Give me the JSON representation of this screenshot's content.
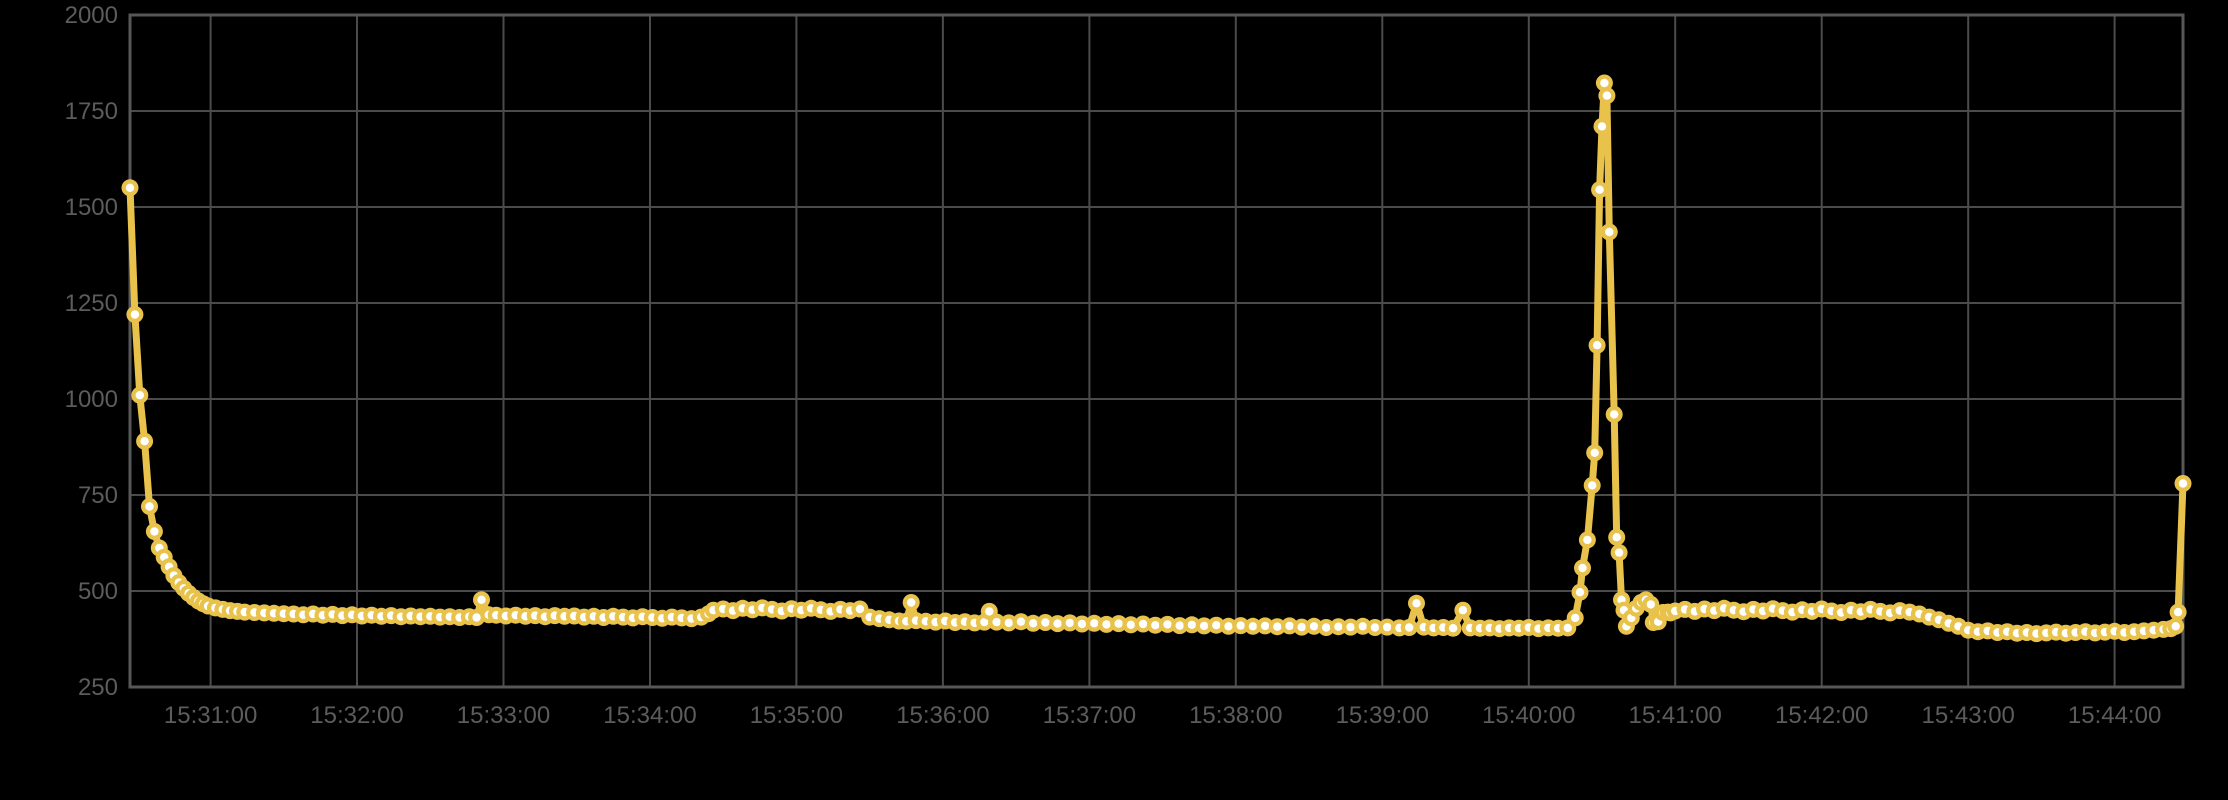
{
  "chart_data": {
    "type": "line",
    "title": "",
    "subtitle": "",
    "legend": "none",
    "grid": true,
    "series_name": "metric",
    "x_axis": {
      "kind": "time",
      "time_base": "15:30:00",
      "visible_range_seconds": [
        27,
        868
      ],
      "tick_offsets_seconds": [
        60,
        120,
        180,
        240,
        300,
        360,
        420,
        480,
        540,
        600,
        660,
        720,
        780,
        840
      ],
      "tick_labels": [
        "15:31:00",
        "15:32:00",
        "15:33:00",
        "15:34:00",
        "15:35:00",
        "15:36:00",
        "15:37:00",
        "15:38:00",
        "15:39:00",
        "15:40:00",
        "15:41:00",
        "15:42:00",
        "15:43:00",
        "15:44:00"
      ]
    },
    "y_axis": {
      "range": [
        250,
        2000
      ],
      "tick_values": [
        250,
        500,
        750,
        1000,
        1250,
        1500,
        1750,
        2000
      ],
      "tick_labels": [
        "250",
        "500",
        "750",
        "1000",
        "1250",
        "1500",
        "1750",
        "2000"
      ]
    },
    "colors": {
      "background": "#000000",
      "line": "#e8c24a",
      "marker_ring": "#e8c24a",
      "marker_core": "#ffffff",
      "gridline": "#4b4b4b",
      "axis_border": "#575757",
      "tick_text": "#5c5c5c"
    },
    "points": [
      [
        27,
        1550
      ],
      [
        29,
        1220
      ],
      [
        31,
        1010
      ],
      [
        33,
        890
      ],
      [
        35,
        720
      ],
      [
        37,
        655
      ],
      [
        39,
        612
      ],
      [
        41,
        588
      ],
      [
        43,
        563
      ],
      [
        45,
        540
      ],
      [
        47,
        522
      ],
      [
        49,
        507
      ],
      [
        51,
        494
      ],
      [
        53,
        483
      ],
      [
        55,
        474
      ],
      [
        57,
        467
      ],
      [
        59,
        461
      ],
      [
        62,
        456
      ],
      [
        65,
        452
      ],
      [
        68,
        449
      ],
      [
        71,
        447
      ],
      [
        74,
        445
      ],
      [
        78,
        444
      ],
      [
        82,
        443
      ],
      [
        86,
        442
      ],
      [
        90,
        441
      ],
      [
        94,
        440
      ],
      [
        98,
        438
      ],
      [
        102,
        440
      ],
      [
        106,
        437
      ],
      [
        110,
        439
      ],
      [
        114,
        436
      ],
      [
        118,
        438
      ],
      [
        122,
        435
      ],
      [
        126,
        437
      ],
      [
        130,
        434
      ],
      [
        134,
        436
      ],
      [
        138,
        433
      ],
      [
        142,
        435
      ],
      [
        146,
        433
      ],
      [
        150,
        434
      ],
      [
        154,
        432
      ],
      [
        158,
        433
      ],
      [
        162,
        431
      ],
      [
        166,
        433
      ],
      [
        169,
        431
      ],
      [
        171,
        477
      ],
      [
        174,
        438
      ],
      [
        177,
        437
      ],
      [
        181,
        435
      ],
      [
        185,
        437
      ],
      [
        189,
        434
      ],
      [
        193,
        436
      ],
      [
        197,
        433
      ],
      [
        201,
        436
      ],
      [
        205,
        434
      ],
      [
        209,
        435
      ],
      [
        213,
        432
      ],
      [
        217,
        434
      ],
      [
        221,
        431
      ],
      [
        225,
        434
      ],
      [
        229,
        432
      ],
      [
        233,
        430
      ],
      [
        237,
        433
      ],
      [
        241,
        431
      ],
      [
        245,
        429
      ],
      [
        249,
        432
      ],
      [
        253,
        430
      ],
      [
        257,
        428
      ],
      [
        261,
        432
      ],
      [
        264,
        441
      ],
      [
        266,
        450
      ],
      [
        270,
        453
      ],
      [
        274,
        449
      ],
      [
        278,
        455
      ],
      [
        282,
        451
      ],
      [
        286,
        456
      ],
      [
        290,
        452
      ],
      [
        294,
        448
      ],
      [
        298,
        454
      ],
      [
        302,
        450
      ],
      [
        306,
        455
      ],
      [
        310,
        451
      ],
      [
        314,
        447
      ],
      [
        318,
        452
      ],
      [
        322,
        449
      ],
      [
        326,
        453
      ],
      [
        330,
        432
      ],
      [
        334,
        428
      ],
      [
        338,
        425
      ],
      [
        342,
        422
      ],
      [
        345,
        421
      ],
      [
        347,
        470
      ],
      [
        349,
        423
      ],
      [
        353,
        421
      ],
      [
        357,
        419
      ],
      [
        361,
        422
      ],
      [
        365,
        418
      ],
      [
        369,
        420
      ],
      [
        373,
        417
      ],
      [
        377,
        419
      ],
      [
        379,
        447
      ],
      [
        382,
        419
      ],
      [
        387,
        417
      ],
      [
        392,
        420
      ],
      [
        397,
        416
      ],
      [
        402,
        418
      ],
      [
        407,
        415
      ],
      [
        412,
        417
      ],
      [
        417,
        414
      ],
      [
        422,
        416
      ],
      [
        427,
        413
      ],
      [
        432,
        415
      ],
      [
        437,
        412
      ],
      [
        442,
        414
      ],
      [
        447,
        411
      ],
      [
        452,
        413
      ],
      [
        457,
        410
      ],
      [
        462,
        412
      ],
      [
        467,
        409
      ],
      [
        472,
        411
      ],
      [
        477,
        408
      ],
      [
        482,
        410
      ],
      [
        487,
        408
      ],
      [
        492,
        409
      ],
      [
        497,
        407
      ],
      [
        502,
        409
      ],
      [
        507,
        406
      ],
      [
        512,
        408
      ],
      [
        517,
        405
      ],
      [
        522,
        407
      ],
      [
        527,
        406
      ],
      [
        532,
        408
      ],
      [
        537,
        405
      ],
      [
        542,
        406
      ],
      [
        547,
        404
      ],
      [
        551,
        405
      ],
      [
        554,
        468
      ],
      [
        557,
        406
      ],
      [
        561,
        404
      ],
      [
        565,
        405
      ],
      [
        569,
        403
      ],
      [
        573,
        450
      ],
      [
        576,
        404
      ],
      [
        580,
        403
      ],
      [
        584,
        404
      ],
      [
        588,
        402
      ],
      [
        592,
        404
      ],
      [
        596,
        403
      ],
      [
        600,
        405
      ],
      [
        604,
        402
      ],
      [
        608,
        404
      ],
      [
        612,
        403
      ],
      [
        616,
        404
      ],
      [
        619,
        430
      ],
      [
        621,
        497
      ],
      [
        622,
        560
      ],
      [
        624,
        633
      ],
      [
        626,
        775
      ],
      [
        627,
        860
      ],
      [
        628,
        1140
      ],
      [
        629,
        1545
      ],
      [
        630,
        1710
      ],
      [
        631,
        1823
      ],
      [
        632,
        1790
      ],
      [
        633,
        1435
      ],
      [
        635,
        960
      ],
      [
        636,
        640
      ],
      [
        637,
        600
      ],
      [
        638,
        477
      ],
      [
        639,
        450
      ],
      [
        640,
        408
      ],
      [
        642,
        430
      ],
      [
        644,
        455
      ],
      [
        646,
        470
      ],
      [
        648,
        477
      ],
      [
        650,
        465
      ],
      [
        651,
        418
      ],
      [
        653,
        420
      ],
      [
        655,
        444
      ],
      [
        657,
        445
      ],
      [
        658,
        443
      ],
      [
        660,
        448
      ],
      [
        664,
        452
      ],
      [
        668,
        447
      ],
      [
        672,
        453
      ],
      [
        676,
        449
      ],
      [
        680,
        455
      ],
      [
        684,
        450
      ],
      [
        688,
        446
      ],
      [
        692,
        452
      ],
      [
        696,
        448
      ],
      [
        700,
        454
      ],
      [
        704,
        449
      ],
      [
        708,
        445
      ],
      [
        712,
        451
      ],
      [
        716,
        447
      ],
      [
        720,
        453
      ],
      [
        724,
        448
      ],
      [
        728,
        444
      ],
      [
        732,
        450
      ],
      [
        736,
        446
      ],
      [
        740,
        452
      ],
      [
        744,
        447
      ],
      [
        748,
        443
      ],
      [
        752,
        449
      ],
      [
        756,
        445
      ],
      [
        760,
        440
      ],
      [
        764,
        432
      ],
      [
        768,
        425
      ],
      [
        772,
        416
      ],
      [
        776,
        408
      ],
      [
        780,
        398
      ],
      [
        784,
        394
      ],
      [
        788,
        396
      ],
      [
        792,
        392
      ],
      [
        796,
        394
      ],
      [
        800,
        390
      ],
      [
        804,
        392
      ],
      [
        808,
        389
      ],
      [
        812,
        391
      ],
      [
        816,
        393
      ],
      [
        820,
        390
      ],
      [
        824,
        392
      ],
      [
        828,
        394
      ],
      [
        832,
        391
      ],
      [
        836,
        393
      ],
      [
        840,
        395
      ],
      [
        844,
        392
      ],
      [
        848,
        394
      ],
      [
        852,
        396
      ],
      [
        856,
        398
      ],
      [
        860,
        400
      ],
      [
        863,
        402
      ],
      [
        865,
        408
      ],
      [
        866,
        445
      ],
      [
        868,
        780
      ]
    ]
  }
}
